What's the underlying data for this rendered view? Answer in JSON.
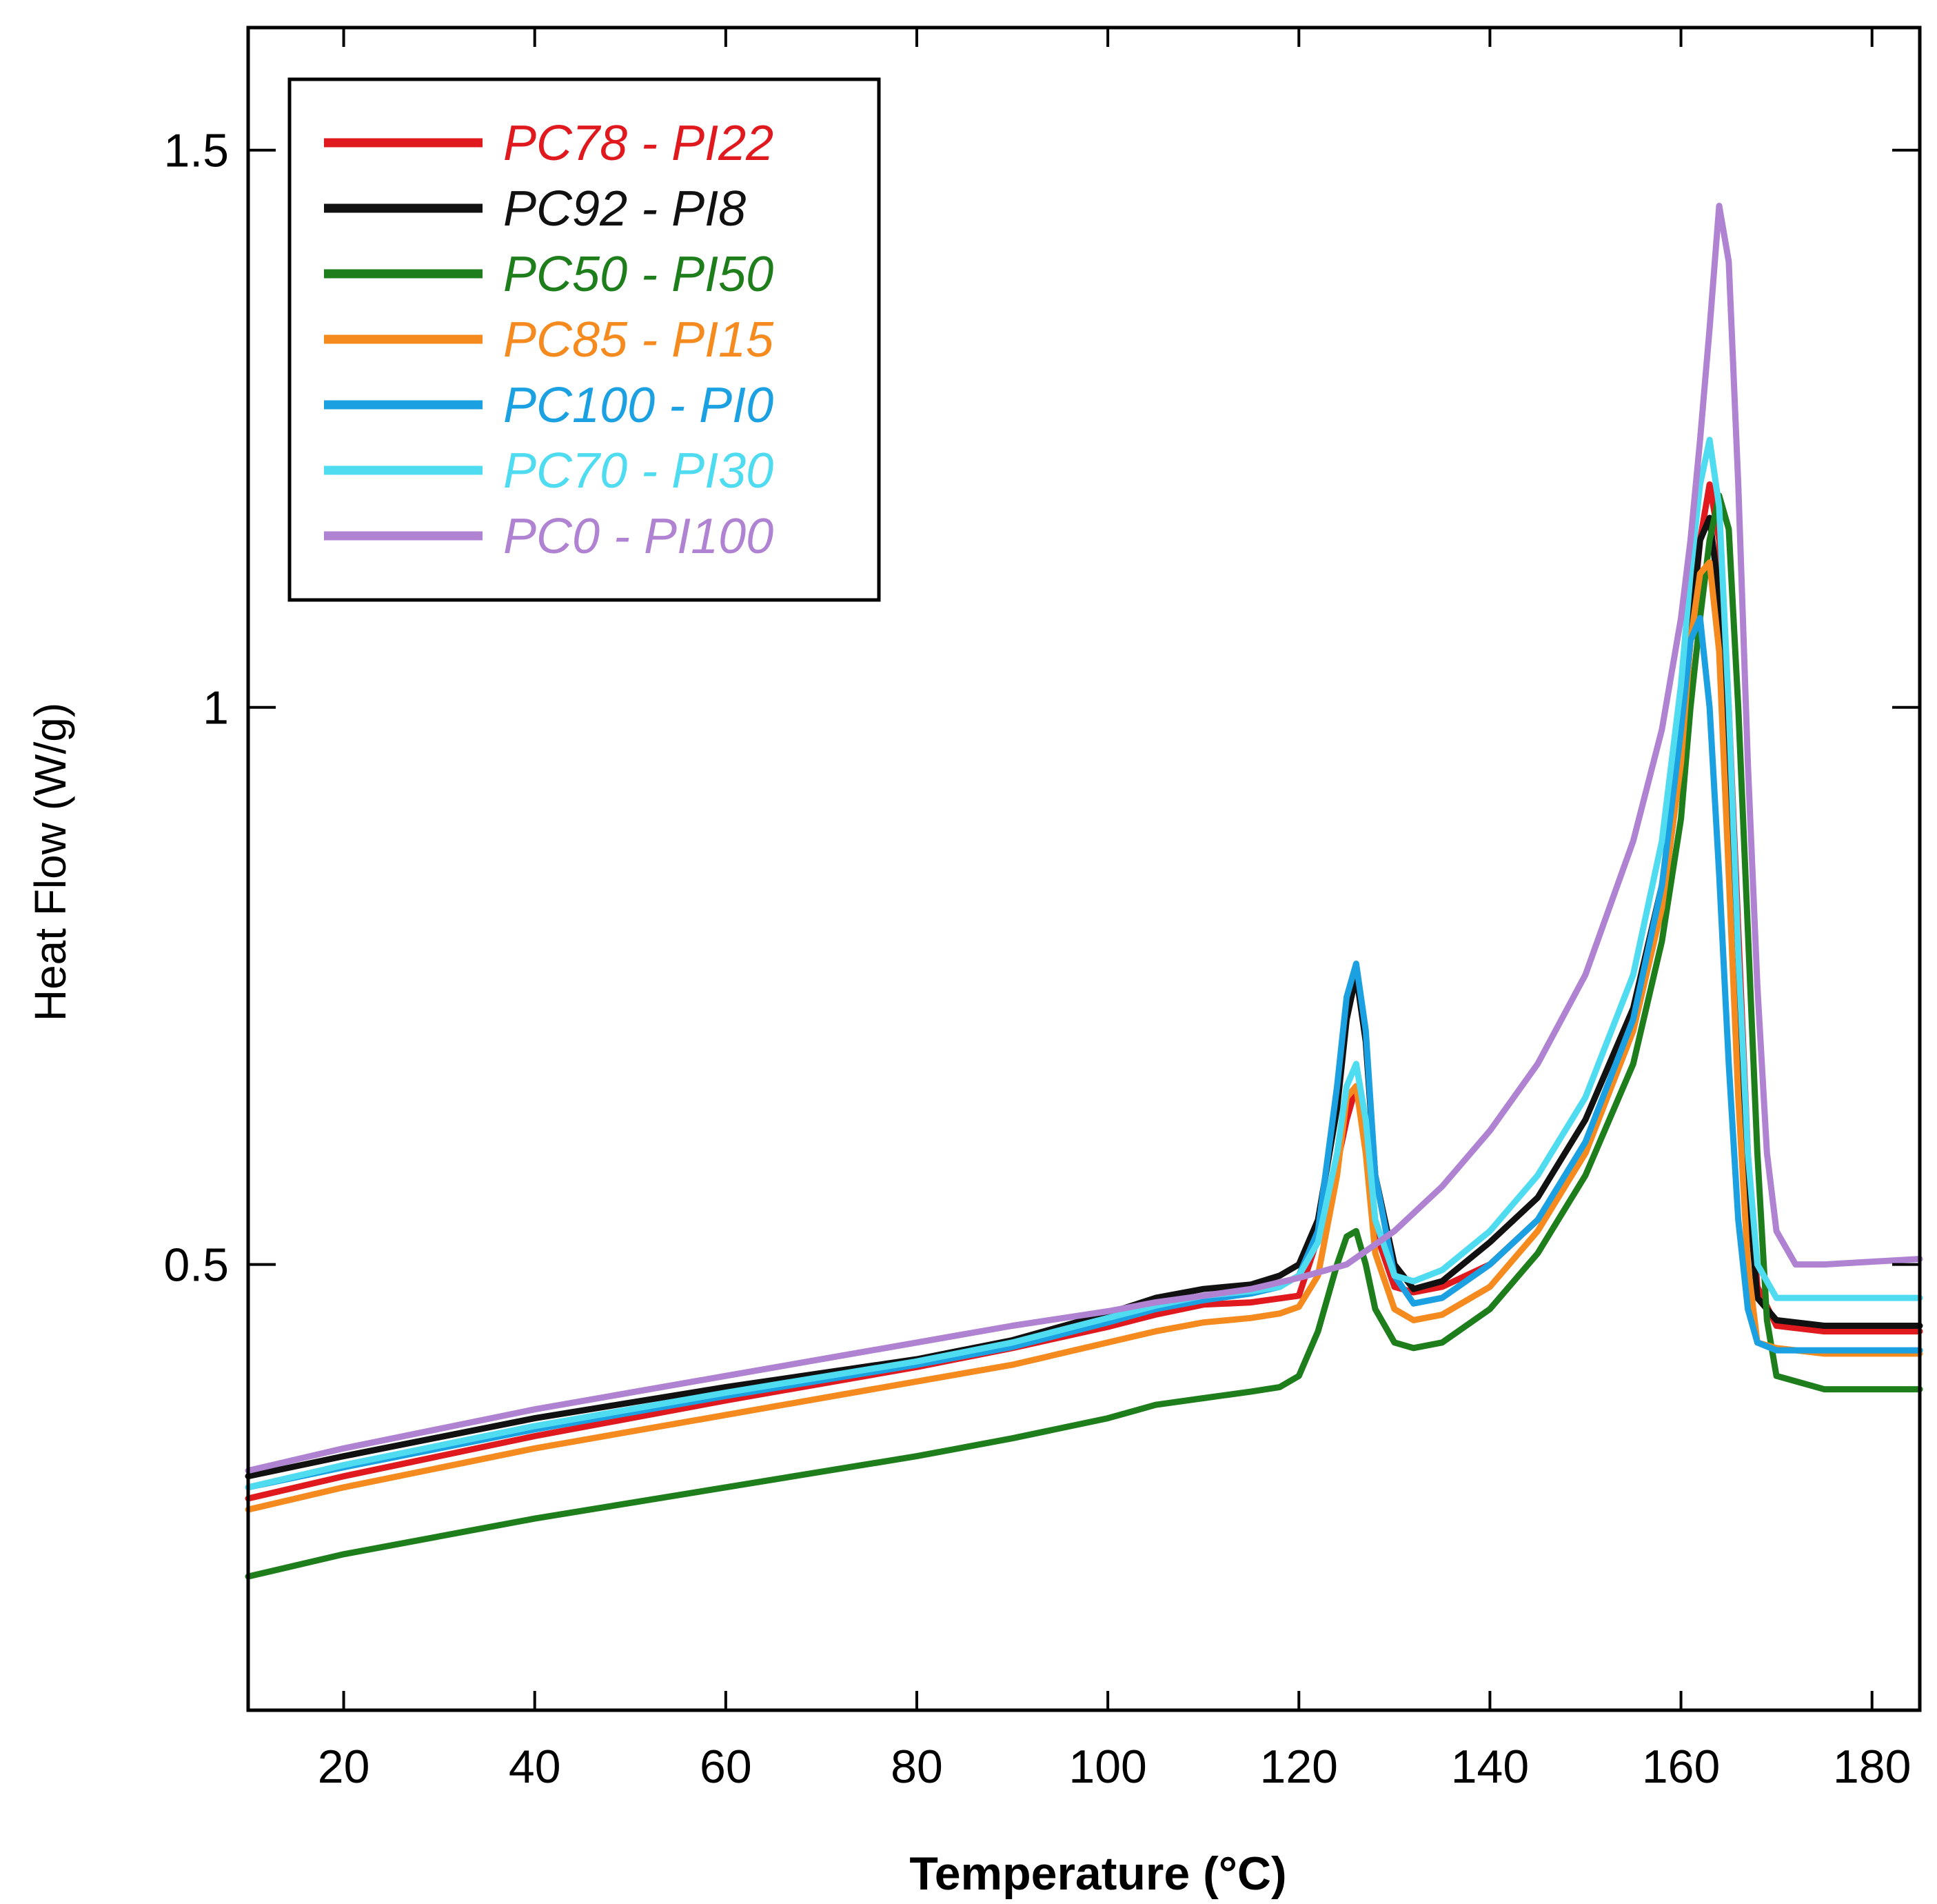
{
  "chart_data": {
    "type": "line",
    "title": "",
    "xlabel": "Temperature (°C)",
    "ylabel": "Heat Flow (W/g)",
    "xlim": [
      10,
      185
    ],
    "ylim": [
      0.1,
      1.61
    ],
    "xticks": [
      20,
      40,
      60,
      80,
      100,
      120,
      140,
      160,
      180
    ],
    "xtick_labels": [
      "20",
      "40",
      "60",
      "80",
      "100",
      "120",
      "140",
      "160",
      "180"
    ],
    "yticks": [
      0.5,
      1,
      1.5
    ],
    "ytick_labels": [
      "0.5",
      "1",
      "1.5"
    ],
    "grid": false,
    "legend_position": "top-left",
    "series": [
      {
        "name": "PC78 - PI22",
        "color": "#e0191f",
        "x": [
          10,
          20,
          40,
          60,
          80,
          90,
          100,
          105,
          110,
          115,
          120,
          123,
          125,
          126,
          127,
          128,
          130,
          132,
          135,
          140,
          145,
          150,
          155,
          158,
          160,
          161,
          162,
          163,
          164,
          165,
          166,
          167,
          168,
          170,
          175,
          185
        ],
        "y": [
          0.29,
          0.31,
          0.346,
          0.378,
          0.408,
          0.425,
          0.444,
          0.455,
          0.464,
          0.466,
          0.472,
          0.55,
          0.63,
          0.66,
          0.61,
          0.53,
          0.48,
          0.475,
          0.48,
          0.5,
          0.54,
          0.6,
          0.71,
          0.82,
          0.95,
          1.06,
          1.15,
          1.2,
          1.15,
          1.0,
          0.8,
          0.6,
          0.48,
          0.445,
          0.44,
          0.44
        ]
      },
      {
        "name": "PC92 - PI8",
        "color": "#111111",
        "x": [
          10,
          20,
          40,
          60,
          80,
          90,
          100,
          105,
          110,
          115,
          118,
          120,
          122,
          124,
          125,
          126,
          127,
          128,
          130,
          132,
          135,
          140,
          145,
          150,
          155,
          158,
          160,
          161,
          162,
          163,
          164,
          165,
          166,
          167,
          168,
          170,
          175,
          185
        ],
        "y": [
          0.31,
          0.328,
          0.362,
          0.39,
          0.415,
          0.432,
          0.456,
          0.47,
          0.478,
          0.482,
          0.49,
          0.5,
          0.54,
          0.64,
          0.72,
          0.76,
          0.7,
          0.58,
          0.5,
          0.478,
          0.485,
          0.52,
          0.56,
          0.63,
          0.73,
          0.84,
          0.96,
          1.07,
          1.15,
          1.17,
          1.1,
          0.95,
          0.75,
          0.57,
          0.47,
          0.45,
          0.445,
          0.445
        ]
      },
      {
        "name": "PC50 - PI50",
        "color": "#1e7e1c",
        "x": [
          10,
          20,
          40,
          60,
          80,
          90,
          100,
          105,
          110,
          115,
          118,
          120,
          122,
          124,
          125,
          126,
          127,
          128,
          130,
          132,
          135,
          140,
          145,
          150,
          155,
          158,
          160,
          161,
          162,
          163,
          164,
          165,
          166,
          167,
          168,
          169,
          170,
          175,
          185
        ],
        "y": [
          0.22,
          0.24,
          0.272,
          0.3,
          0.328,
          0.344,
          0.362,
          0.374,
          0.38,
          0.386,
          0.39,
          0.4,
          0.44,
          0.5,
          0.525,
          0.53,
          0.5,
          0.46,
          0.43,
          0.425,
          0.43,
          0.46,
          0.51,
          0.58,
          0.68,
          0.79,
          0.9,
          1.0,
          1.08,
          1.15,
          1.19,
          1.16,
          1.0,
          0.8,
          0.6,
          0.45,
          0.4,
          0.388,
          0.388
        ]
      },
      {
        "name": "PC85 - PI15",
        "color": "#f58a1f",
        "x": [
          10,
          20,
          40,
          60,
          80,
          90,
          100,
          105,
          110,
          115,
          118,
          120,
          122,
          124,
          125,
          126,
          127,
          128,
          130,
          132,
          135,
          140,
          145,
          150,
          155,
          158,
          160,
          161,
          162,
          163,
          164,
          165,
          166,
          167,
          168,
          170,
          175,
          185
        ],
        "y": [
          0.28,
          0.3,
          0.335,
          0.365,
          0.395,
          0.41,
          0.43,
          0.44,
          0.448,
          0.452,
          0.456,
          0.462,
          0.49,
          0.58,
          0.65,
          0.66,
          0.6,
          0.51,
          0.46,
          0.45,
          0.455,
          0.48,
          0.53,
          0.6,
          0.71,
          0.82,
          0.95,
          1.06,
          1.12,
          1.13,
          1.05,
          0.85,
          0.65,
          0.5,
          0.43,
          0.425,
          0.42,
          0.42
        ]
      },
      {
        "name": "PC100 - PI0",
        "color": "#1ba1e2",
        "x": [
          10,
          20,
          40,
          60,
          80,
          90,
          100,
          105,
          110,
          115,
          118,
          120,
          122,
          124,
          125,
          126,
          127,
          128,
          130,
          132,
          135,
          140,
          145,
          150,
          155,
          158,
          160,
          161,
          162,
          163,
          164,
          165,
          166,
          167,
          168,
          170,
          175,
          185
        ],
        "y": [
          0.3,
          0.318,
          0.352,
          0.382,
          0.41,
          0.426,
          0.448,
          0.46,
          0.468,
          0.474,
          0.48,
          0.49,
          0.53,
          0.66,
          0.74,
          0.77,
          0.71,
          0.58,
          0.49,
          0.465,
          0.47,
          0.5,
          0.54,
          0.61,
          0.72,
          0.84,
          0.98,
          1.06,
          1.08,
          1.0,
          0.85,
          0.68,
          0.54,
          0.46,
          0.43,
          0.423,
          0.423,
          0.423
        ]
      },
      {
        "name": "PC70 - PI30",
        "color": "#4fdcf0",
        "x": [
          10,
          20,
          40,
          60,
          80,
          90,
          100,
          105,
          110,
          115,
          118,
          120,
          122,
          124,
          125,
          126,
          127,
          128,
          130,
          132,
          135,
          140,
          145,
          150,
          155,
          158,
          160,
          161,
          162,
          163,
          164,
          165,
          166,
          167,
          168,
          170,
          175,
          185
        ],
        "y": [
          0.3,
          0.32,
          0.355,
          0.385,
          0.413,
          0.43,
          0.452,
          0.463,
          0.472,
          0.476,
          0.48,
          0.49,
          0.52,
          0.6,
          0.66,
          0.68,
          0.63,
          0.54,
          0.49,
          0.485,
          0.495,
          0.53,
          0.58,
          0.65,
          0.76,
          0.88,
          1.02,
          1.12,
          1.2,
          1.24,
          1.18,
          1.0,
          0.78,
          0.6,
          0.5,
          0.47,
          0.47,
          0.47
        ]
      },
      {
        "name": "PC0 - PI100",
        "color": "#b083d2",
        "x": [
          10,
          20,
          40,
          60,
          80,
          90,
          100,
          105,
          110,
          115,
          120,
          125,
          130,
          135,
          140,
          145,
          150,
          155,
          158,
          160,
          161,
          162,
          163,
          164,
          165,
          166,
          167,
          168,
          169,
          170,
          172,
          175,
          185
        ],
        "y": [
          0.315,
          0.335,
          0.37,
          0.4,
          0.43,
          0.445,
          0.458,
          0.466,
          0.472,
          0.478,
          0.488,
          0.5,
          0.53,
          0.57,
          0.62,
          0.68,
          0.76,
          0.88,
          0.98,
          1.08,
          1.15,
          1.24,
          1.34,
          1.45,
          1.4,
          1.2,
          0.95,
          0.75,
          0.6,
          0.53,
          0.5,
          0.5,
          0.505
        ]
      }
    ]
  }
}
